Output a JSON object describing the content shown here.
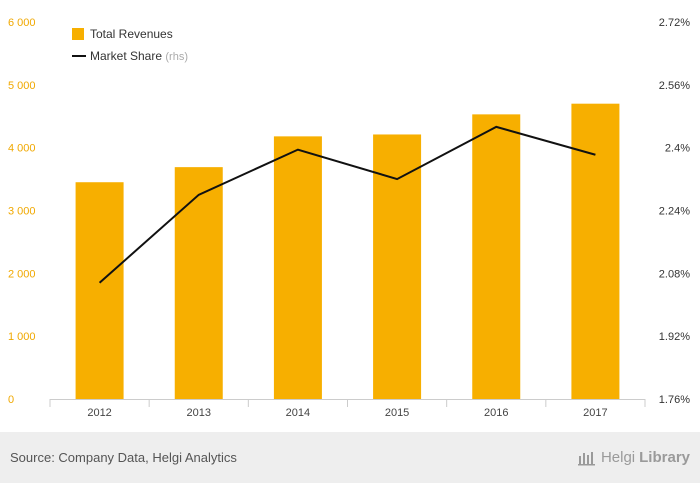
{
  "chart_data": {
    "type": "bar",
    "categories": [
      "2012",
      "2013",
      "2014",
      "2015",
      "2016",
      "2017"
    ],
    "series": [
      {
        "name": "Total Revenues",
        "kind": "bar",
        "axis": "left",
        "values": [
          3450,
          3690,
          4180,
          4210,
          4530,
          4700
        ]
      },
      {
        "name": "Market Share",
        "name_suffix": "(rhs)",
        "kind": "line",
        "axis": "right",
        "values": [
          2.056,
          2.28,
          2.395,
          2.32,
          2.453,
          2.382
        ]
      }
    ],
    "left_axis": {
      "ylim": [
        0,
        6000
      ],
      "ticks": [
        0,
        1000,
        2000,
        3000,
        4000,
        5000,
        6000
      ],
      "tick_labels": [
        "0",
        "1 000",
        "2 000",
        "3 000",
        "4 000",
        "5 000",
        "6 000"
      ]
    },
    "right_axis": {
      "ylim": [
        1.76,
        2.72
      ],
      "ticks": [
        1.76,
        1.92,
        2.08,
        2.24,
        2.4,
        2.56,
        2.72
      ],
      "tick_labels": [
        "1.76%",
        "1.92%",
        "2.08%",
        "2.24%",
        "2.4%",
        "2.56%",
        "2.72%"
      ]
    },
    "legend_position": "top-left",
    "grid": false
  },
  "colors": {
    "bar": "#F7AF00",
    "line": "#111111",
    "left_ticks": "#F0A800",
    "right_ticks": "#333333",
    "x_ticks": "#444444",
    "axis": "#cccccc"
  },
  "footer": {
    "source": "Source: Company Data, Helgi Analytics",
    "logo_icon": "helgi-library-logo-icon",
    "logo_part1": "Helgi",
    "logo_part2": "Library"
  }
}
